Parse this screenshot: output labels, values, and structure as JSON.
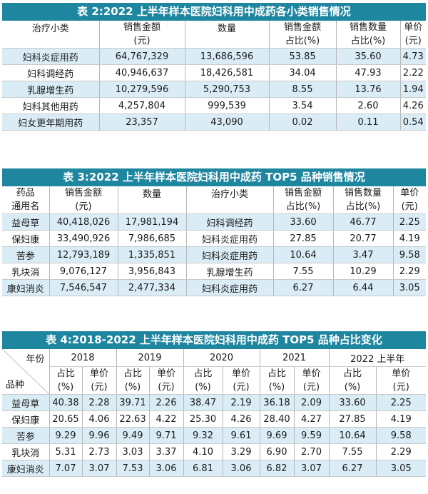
{
  "table2": {
    "title": "表 2:2022 上半年样本医院妇科用中成药各小类销售情况",
    "headers": {
      "category": "治疗小类",
      "amount_1": "销售金额",
      "amount_2": "(元)",
      "qty": "数量",
      "amount_share_1": "销售金额",
      "amount_share_2": "占比(%)",
      "qty_share_1": "销售数量",
      "qty_share_2": "占比(%)",
      "price_1": "单价",
      "price_2": "(元)"
    },
    "rows": [
      {
        "category": "妇科炎症用药",
        "amount": "64,767,329",
        "qty": "13,686,596",
        "amount_share": "53.85",
        "qty_share": "35.60",
        "price": "4.73"
      },
      {
        "category": "妇科调经药",
        "amount": "40,946,637",
        "qty": "18,426,581",
        "amount_share": "34.04",
        "qty_share": "47.93",
        "price": "2.22"
      },
      {
        "category": "乳腺增生药",
        "amount": "10,279,596",
        "qty": "5,290,753",
        "amount_share": "8.55",
        "qty_share": "13.76",
        "price": "1.94"
      },
      {
        "category": "妇科其他用药",
        "amount": "4,257,804",
        "qty": "999,539",
        "amount_share": "3.54",
        "qty_share": "2.60",
        "price": "4.26"
      },
      {
        "category": "妇女更年期用药",
        "amount": "23,357",
        "qty": "43,090",
        "amount_share": "0.02",
        "qty_share": "0.11",
        "price": "0.54"
      }
    ]
  },
  "table3": {
    "title": "表 3:2022 上半年样本医院妇科用中成药 TOP5 品种销售情况",
    "headers": {
      "drug_1": "药品",
      "drug_2": "通用名",
      "amount_1": "销售金额",
      "amount_2": "(元)",
      "qty": "数量",
      "category": "治疗小类",
      "amount_share_1": "销售金额",
      "amount_share_2": "占比(%)",
      "qty_share_1": "销售数量",
      "qty_share_2": "占比(%)",
      "price_1": "单价",
      "price_2": "(元)"
    },
    "rows": [
      {
        "drug": "益母草",
        "amount": "40,418,026",
        "qty": "17,981,194",
        "category": "妇科调经药",
        "amount_share": "33.60",
        "qty_share": "46.77",
        "price": "2.25"
      },
      {
        "drug": "保妇康",
        "amount": "33,490,926",
        "qty": "7,986,685",
        "category": "妇科炎症用药",
        "amount_share": "27.85",
        "qty_share": "20.77",
        "price": "4.19"
      },
      {
        "drug": "苦参",
        "amount": "12,793,189",
        "qty": "1,335,851",
        "category": "妇科炎症用药",
        "amount_share": "10.64",
        "qty_share": "3.47",
        "price": "9.58"
      },
      {
        "drug": "乳块消",
        "amount": "9,076,127",
        "qty": "3,956,843",
        "category": "乳腺增生药",
        "amount_share": "7.55",
        "qty_share": "10.29",
        "price": "2.29"
      },
      {
        "drug": "康妇消炎",
        "amount": "7,546,547",
        "qty": "2,477,334",
        "category": "妇科炎症用药",
        "amount_share": "6.27",
        "qty_share": "6.44",
        "price": "3.05"
      }
    ]
  },
  "table4": {
    "title": "表 4:2018-2022 上半年样本医院妇科用中成药 TOP5 品种占比变化",
    "corner_top": "年份",
    "corner_bottom": "品种",
    "years": [
      "2018",
      "2019",
      "2020",
      "2021",
      "2022 上半年"
    ],
    "share_1": "占比",
    "share_2": "(%)",
    "price_1": "单价",
    "price_2": "(元)",
    "rows": [
      {
        "drug": "益母草",
        "values": [
          "40.38",
          "2.28",
          "39.71",
          "2.26",
          "38.47",
          "2.19",
          "36.18",
          "2.09",
          "33.60",
          "2.25"
        ]
      },
      {
        "drug": "保妇康",
        "values": [
          "20.65",
          "4.06",
          "22.63",
          "4.22",
          "25.30",
          "4.26",
          "28.40",
          "4.27",
          "27.85",
          "4.19"
        ]
      },
      {
        "drug": "苦参",
        "values": [
          "9.29",
          "9.96",
          "9.49",
          "9.71",
          "9.32",
          "9.61",
          "9.69",
          "9.59",
          "10.64",
          "9.58"
        ]
      },
      {
        "drug": "乳块消",
        "values": [
          "5.31",
          "2.73",
          "3.03",
          "3.37",
          "4.10",
          "3.29",
          "6.90",
          "2.70",
          "7.55",
          "2.29"
        ]
      },
      {
        "drug": "康妇消炎",
        "values": [
          "7.07",
          "3.07",
          "7.53",
          "3.06",
          "6.81",
          "3.06",
          "6.82",
          "3.07",
          "6.27",
          "3.05"
        ]
      }
    ]
  }
}
